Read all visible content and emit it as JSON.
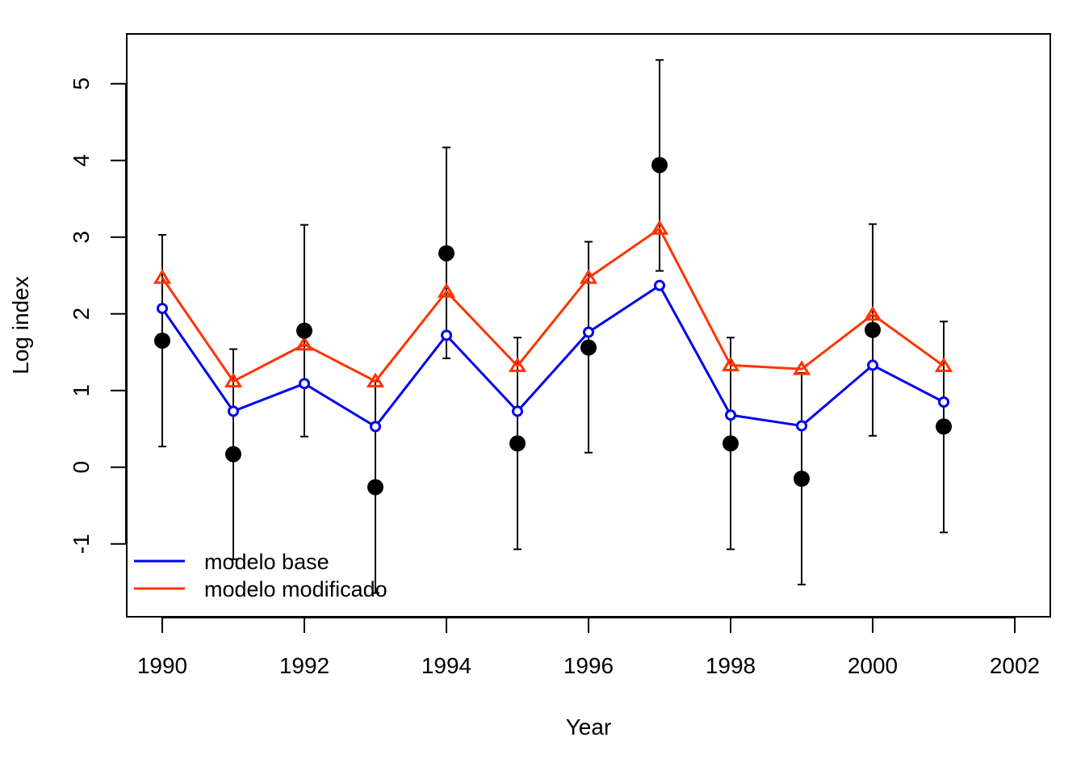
{
  "chart_data": {
    "type": "line",
    "title": "",
    "xlabel": "Year",
    "ylabel": "Log index",
    "xlim": [
      1989.5,
      2002.5
    ],
    "ylim": [
      -1.95,
      5.65
    ],
    "xticks": [
      1990,
      1992,
      1994,
      1996,
      1998,
      2000,
      2002
    ],
    "yticks": [
      -1,
      0,
      1,
      2,
      3,
      4,
      5
    ],
    "grid": false,
    "legend_position": "bottom-left",
    "x": [
      1990,
      1991,
      1992,
      1993,
      1994,
      1995,
      1996,
      1997,
      1998,
      1999,
      2000,
      2001
    ],
    "observed": {
      "marker": "filled-circle",
      "color": "#000000",
      "values": [
        1.65,
        0.17,
        1.78,
        -0.26,
        2.79,
        0.31,
        1.56,
        3.94,
        0.31,
        -0.15,
        1.79,
        0.53
      ],
      "lower": [
        0.27,
        -1.2,
        0.4,
        -1.64,
        1.42,
        -1.07,
        0.19,
        2.56,
        -1.07,
        -1.53,
        0.41,
        -0.85
      ],
      "upper": [
        3.03,
        1.54,
        3.16,
        1.12,
        4.17,
        1.69,
        2.94,
        5.31,
        1.69,
        1.23,
        3.17,
        1.9
      ]
    },
    "series": [
      {
        "name": "modelo base",
        "color": "#0000ee",
        "marker": "open-circle",
        "values": [
          2.07,
          0.73,
          1.09,
          0.53,
          1.72,
          0.73,
          1.76,
          2.37,
          0.68,
          0.54,
          1.33,
          0.85
        ]
      },
      {
        "name": "modelo modificado",
        "color": "#ff3300",
        "marker": "open-triangle",
        "values": [
          2.47,
          1.12,
          1.6,
          1.12,
          2.29,
          1.32,
          2.47,
          3.11,
          1.33,
          1.28,
          1.99,
          1.32
        ]
      }
    ]
  }
}
